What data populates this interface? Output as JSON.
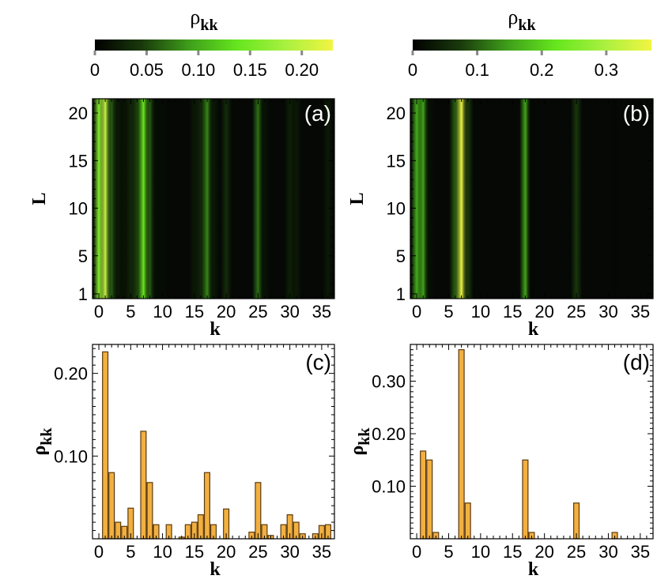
{
  "colors": {
    "colormap": [
      "#000000",
      "#1a3a0c",
      "#3fa01a",
      "#66e61e",
      "#a8f040",
      "#f2f542"
    ],
    "bar_fill": "#f2b040",
    "bar_stroke": "#5a3a10"
  },
  "chart_data": [
    {
      "id": "a",
      "type": "heatmap",
      "panel_label": "(a)",
      "xlabel": "k",
      "ylabel": "L",
      "xlim": [
        -1,
        37
      ],
      "ylim": [
        0.5,
        21.5
      ],
      "xticks": [
        "0",
        "5",
        "10",
        "15",
        "20",
        "25",
        "30",
        "35"
      ],
      "yticks": [
        "1",
        "5",
        "10",
        "15",
        "20"
      ],
      "colorbar": {
        "title": "ρ",
        "title_sub": "kk",
        "range": [
          0,
          0.23
        ],
        "ticks": [
          "0",
          "0.05",
          "0.10",
          "0.15",
          "0.20"
        ]
      },
      "column_profile": [
        {
          "k": 0,
          "v": 0.16
        },
        {
          "k": 1,
          "v": 0.2
        },
        {
          "k": 2,
          "v": 0.06
        },
        {
          "k": 3,
          "v": 0.02
        },
        {
          "k": 4,
          "v": 0.015
        },
        {
          "k": 5,
          "v": 0.03
        },
        {
          "k": 6,
          "v": 0.05
        },
        {
          "k": 7,
          "v": 0.14
        },
        {
          "k": 8,
          "v": 0.06
        },
        {
          "k": 9,
          "v": 0.01
        },
        {
          "k": 10,
          "v": 0.01
        },
        {
          "k": 15,
          "v": 0.02
        },
        {
          "k": 16,
          "v": 0.03
        },
        {
          "k": 17,
          "v": 0.08
        },
        {
          "k": 18,
          "v": 0.02
        },
        {
          "k": 20,
          "v": 0.035
        },
        {
          "k": 25,
          "v": 0.07
        },
        {
          "k": 26,
          "v": 0.015
        },
        {
          "k": 30,
          "v": 0.025
        },
        {
          "k": 31,
          "v": 0.02
        },
        {
          "k": 36,
          "v": 0.02
        }
      ]
    },
    {
      "id": "b",
      "type": "heatmap",
      "panel_label": "(b)",
      "xlabel": "k",
      "ylabel": "L",
      "xlim": [
        -1,
        37
      ],
      "ylim": [
        0.5,
        21.5
      ],
      "xticks": [
        "0",
        "5",
        "10",
        "15",
        "20",
        "25",
        "30",
        "35"
      ],
      "yticks": [
        "1",
        "5",
        "10",
        "15",
        "20"
      ],
      "colorbar": {
        "title": "ρ",
        "title_sub": "kk",
        "range": [
          0,
          0.37
        ],
        "ticks": [
          "0",
          "0.1",
          "0.2",
          "0.3"
        ]
      },
      "column_profile": [
        {
          "k": 0,
          "v": 0.16
        },
        {
          "k": 1,
          "v": 0.15
        },
        {
          "k": 2,
          "v": 0.02
        },
        {
          "k": 6,
          "v": 0.1
        },
        {
          "k": 7,
          "v": 0.36
        },
        {
          "k": 8,
          "v": 0.07
        },
        {
          "k": 17,
          "v": 0.15
        },
        {
          "k": 18,
          "v": 0.01
        },
        {
          "k": 25,
          "v": 0.07
        },
        {
          "k": 31,
          "v": 0.01
        }
      ]
    },
    {
      "id": "c",
      "type": "bar",
      "panel_label": "(c)",
      "xlabel": "k",
      "ylabel": "ρ",
      "ylabel_sub": "kk",
      "xlim": [
        -1,
        37
      ],
      "ylim": [
        0,
        0.235
      ],
      "xticks": [
        "0",
        "5",
        "10",
        "15",
        "20",
        "25",
        "30",
        "35"
      ],
      "yticks": [
        "0.10",
        "0.20"
      ],
      "x": [
        1,
        2,
        3,
        4,
        5,
        7,
        8,
        9,
        11,
        13,
        14,
        15,
        16,
        17,
        18,
        20,
        24,
        25,
        26,
        27,
        29,
        30,
        31,
        32,
        34,
        35,
        36
      ],
      "values": [
        0.226,
        0.08,
        0.02,
        0.015,
        0.037,
        0.13,
        0.068,
        0.017,
        0.017,
        0.002,
        0.017,
        0.02,
        0.029,
        0.08,
        0.017,
        0.036,
        0.008,
        0.068,
        0.017,
        0.004,
        0.017,
        0.029,
        0.02,
        0.006,
        0.006,
        0.016,
        0.017
      ]
    },
    {
      "id": "d",
      "type": "bar",
      "panel_label": "(d)",
      "xlabel": "k",
      "ylabel": "ρ",
      "ylabel_sub": "kk",
      "xlim": [
        -1,
        37
      ],
      "ylim": [
        0,
        0.37
      ],
      "xticks": [
        "0",
        "5",
        "10",
        "15",
        "20",
        "25",
        "30",
        "35"
      ],
      "yticks": [
        "0.10",
        "0.20",
        "0.30"
      ],
      "x": [
        1,
        2,
        3,
        7,
        8,
        17,
        18,
        25,
        31
      ],
      "values": [
        0.167,
        0.15,
        0.012,
        0.36,
        0.068,
        0.15,
        0.012,
        0.068,
        0.012
      ]
    }
  ]
}
